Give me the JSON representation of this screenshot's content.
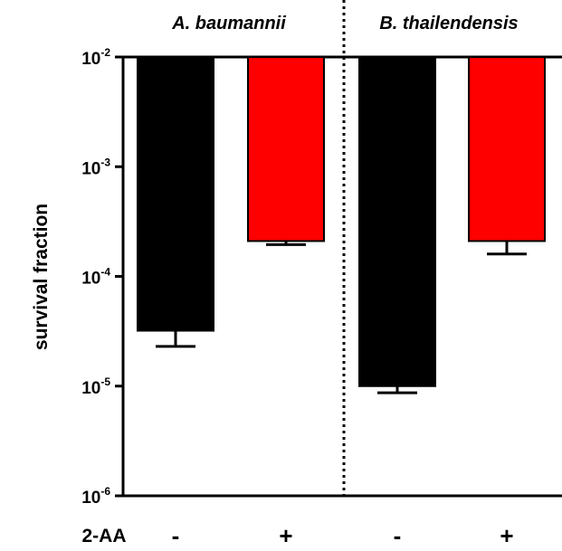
{
  "chart_data": {
    "type": "bar",
    "title": "",
    "xlabel": "",
    "ylabel": "survival fraction",
    "y_scale": "log",
    "ylim": [
      1e-06,
      0.01
    ],
    "y_ticks": [
      {
        "value": 0.01,
        "base": "10",
        "exp": "-2"
      },
      {
        "value": 0.001,
        "base": "10",
        "exp": "-3"
      },
      {
        "value": 0.0001,
        "base": "10",
        "exp": "-4"
      },
      {
        "value": 1e-05,
        "base": "10",
        "exp": "-5"
      },
      {
        "value": 1e-06,
        "base": "10",
        "exp": "-6"
      }
    ],
    "groups": [
      "A. baumannii",
      "B. thailendensis"
    ],
    "row_label": "2-AA",
    "categories": [
      "-",
      "+",
      "-",
      "+"
    ],
    "bars": [
      {
        "group": "A. baumannii",
        "condition": "-",
        "value": 3.2e-05,
        "error_low": 2.3e-05,
        "color": "#000000"
      },
      {
        "group": "A. baumannii",
        "condition": "+",
        "value": 0.00021,
        "error_low": 0.000195,
        "color": "#ff0000"
      },
      {
        "group": "B. thailendensis",
        "condition": "-",
        "value": 1e-05,
        "error_low": 8.7e-06,
        "color": "#000000"
      },
      {
        "group": "B. thailendensis",
        "condition": "+",
        "value": 0.00021,
        "error_low": 0.00016,
        "color": "#ff0000"
      }
    ],
    "grid": false,
    "divider": "dotted vertical line between groups"
  }
}
